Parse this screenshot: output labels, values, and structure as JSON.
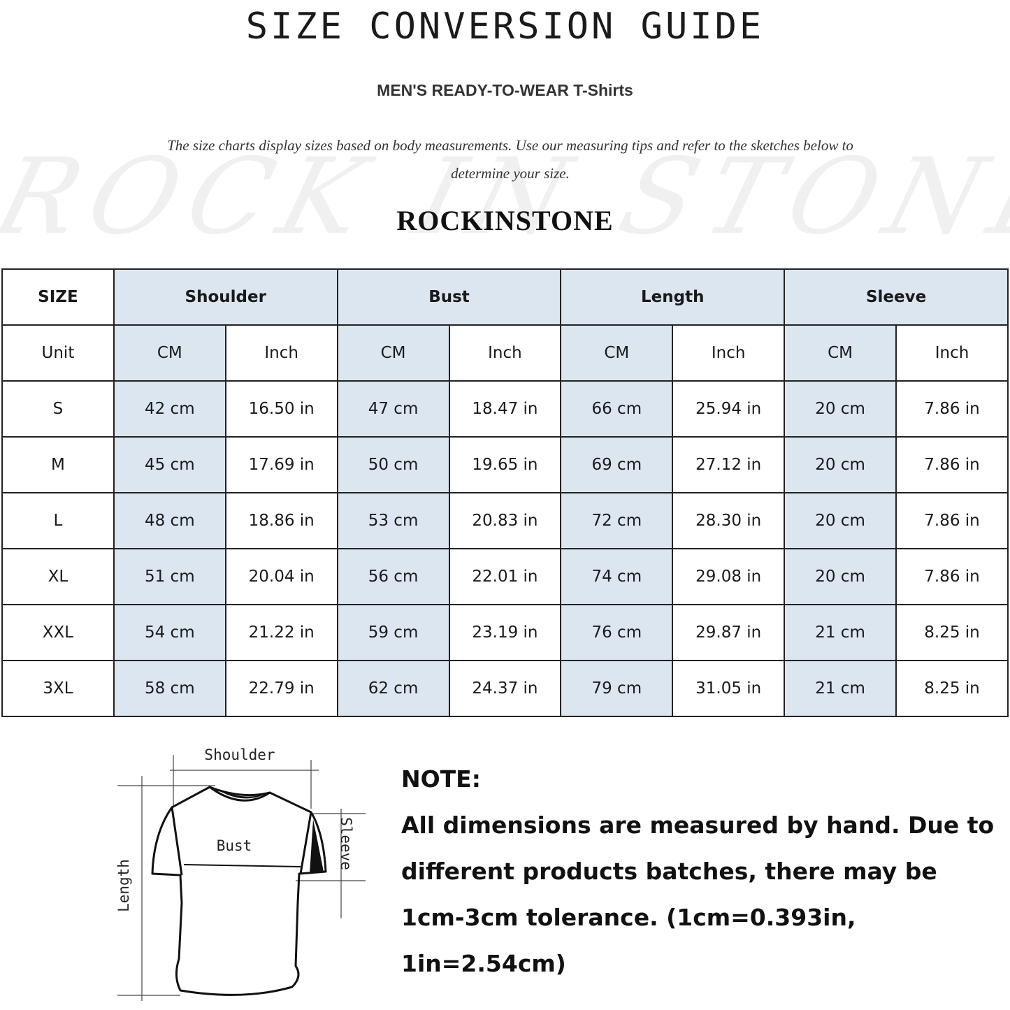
{
  "title": "SIZE CONVERSION GUIDE",
  "subtitle": "MEN'S READY-TO-WEAR T-Shirts",
  "description": "The size charts display sizes based on body measurements. Use our measuring tips and refer to the sketches below to determine your size.",
  "watermark": "ROCK IN STONE",
  "brand": "ROCKINSTONE",
  "colors": {
    "header_fill": "#dce6f1",
    "border": "#222222"
  },
  "table": {
    "size_header": "SIZE",
    "groups": [
      "Shoulder",
      "Bust",
      "Length",
      "Sleeve"
    ],
    "unit_label": "Unit",
    "units": [
      "CM",
      "Inch",
      "CM",
      "Inch",
      "CM",
      "Inch",
      "CM",
      "Inch"
    ],
    "rows": [
      {
        "size": "S",
        "values": [
          "42 cm",
          "16.50 in",
          "47 cm",
          "18.47  in",
          "66 cm",
          "25.94  in",
          "20 cm",
          "7.86  in"
        ]
      },
      {
        "size": "M",
        "values": [
          "45 cm",
          "17.69  in",
          "50 cm",
          "19.65  in",
          "69 cm",
          "27.12  in",
          "20 cm",
          "7.86  in"
        ]
      },
      {
        "size": "L",
        "values": [
          "48 cm",
          "18.86  in",
          "53 cm",
          "20.83  in",
          "72 cm",
          "28.30  in",
          "20 cm",
          "7.86  in"
        ]
      },
      {
        "size": "XL",
        "values": [
          "51 cm",
          "20.04  in",
          "56 cm",
          "22.01  in",
          "74 cm",
          "29.08  in",
          "20 cm",
          "7.86  in"
        ]
      },
      {
        "size": "XXL",
        "values": [
          "54 cm",
          "21.22  in",
          "59 cm",
          "23.19  in",
          "76 cm",
          "29.87  in",
          "21 cm",
          "8.25  in"
        ]
      },
      {
        "size": "3XL",
        "values": [
          "58 cm",
          "22.79  in",
          "62 cm",
          "24.37  in",
          "79 cm",
          "31.05  in",
          "21 cm",
          "8.25  in"
        ]
      }
    ]
  },
  "diagram": {
    "shoulder": "Shoulder",
    "bust": "Bust",
    "length": "Length",
    "sleeve": "Sleeve"
  },
  "note": {
    "heading": "NOTE:",
    "lines": [
      "All dimensions are measured by hand. Due to",
      "different products batches, there may be",
      "1cm-3cm tolerance. (1cm=0.393in, 1in=2.54cm)"
    ]
  }
}
